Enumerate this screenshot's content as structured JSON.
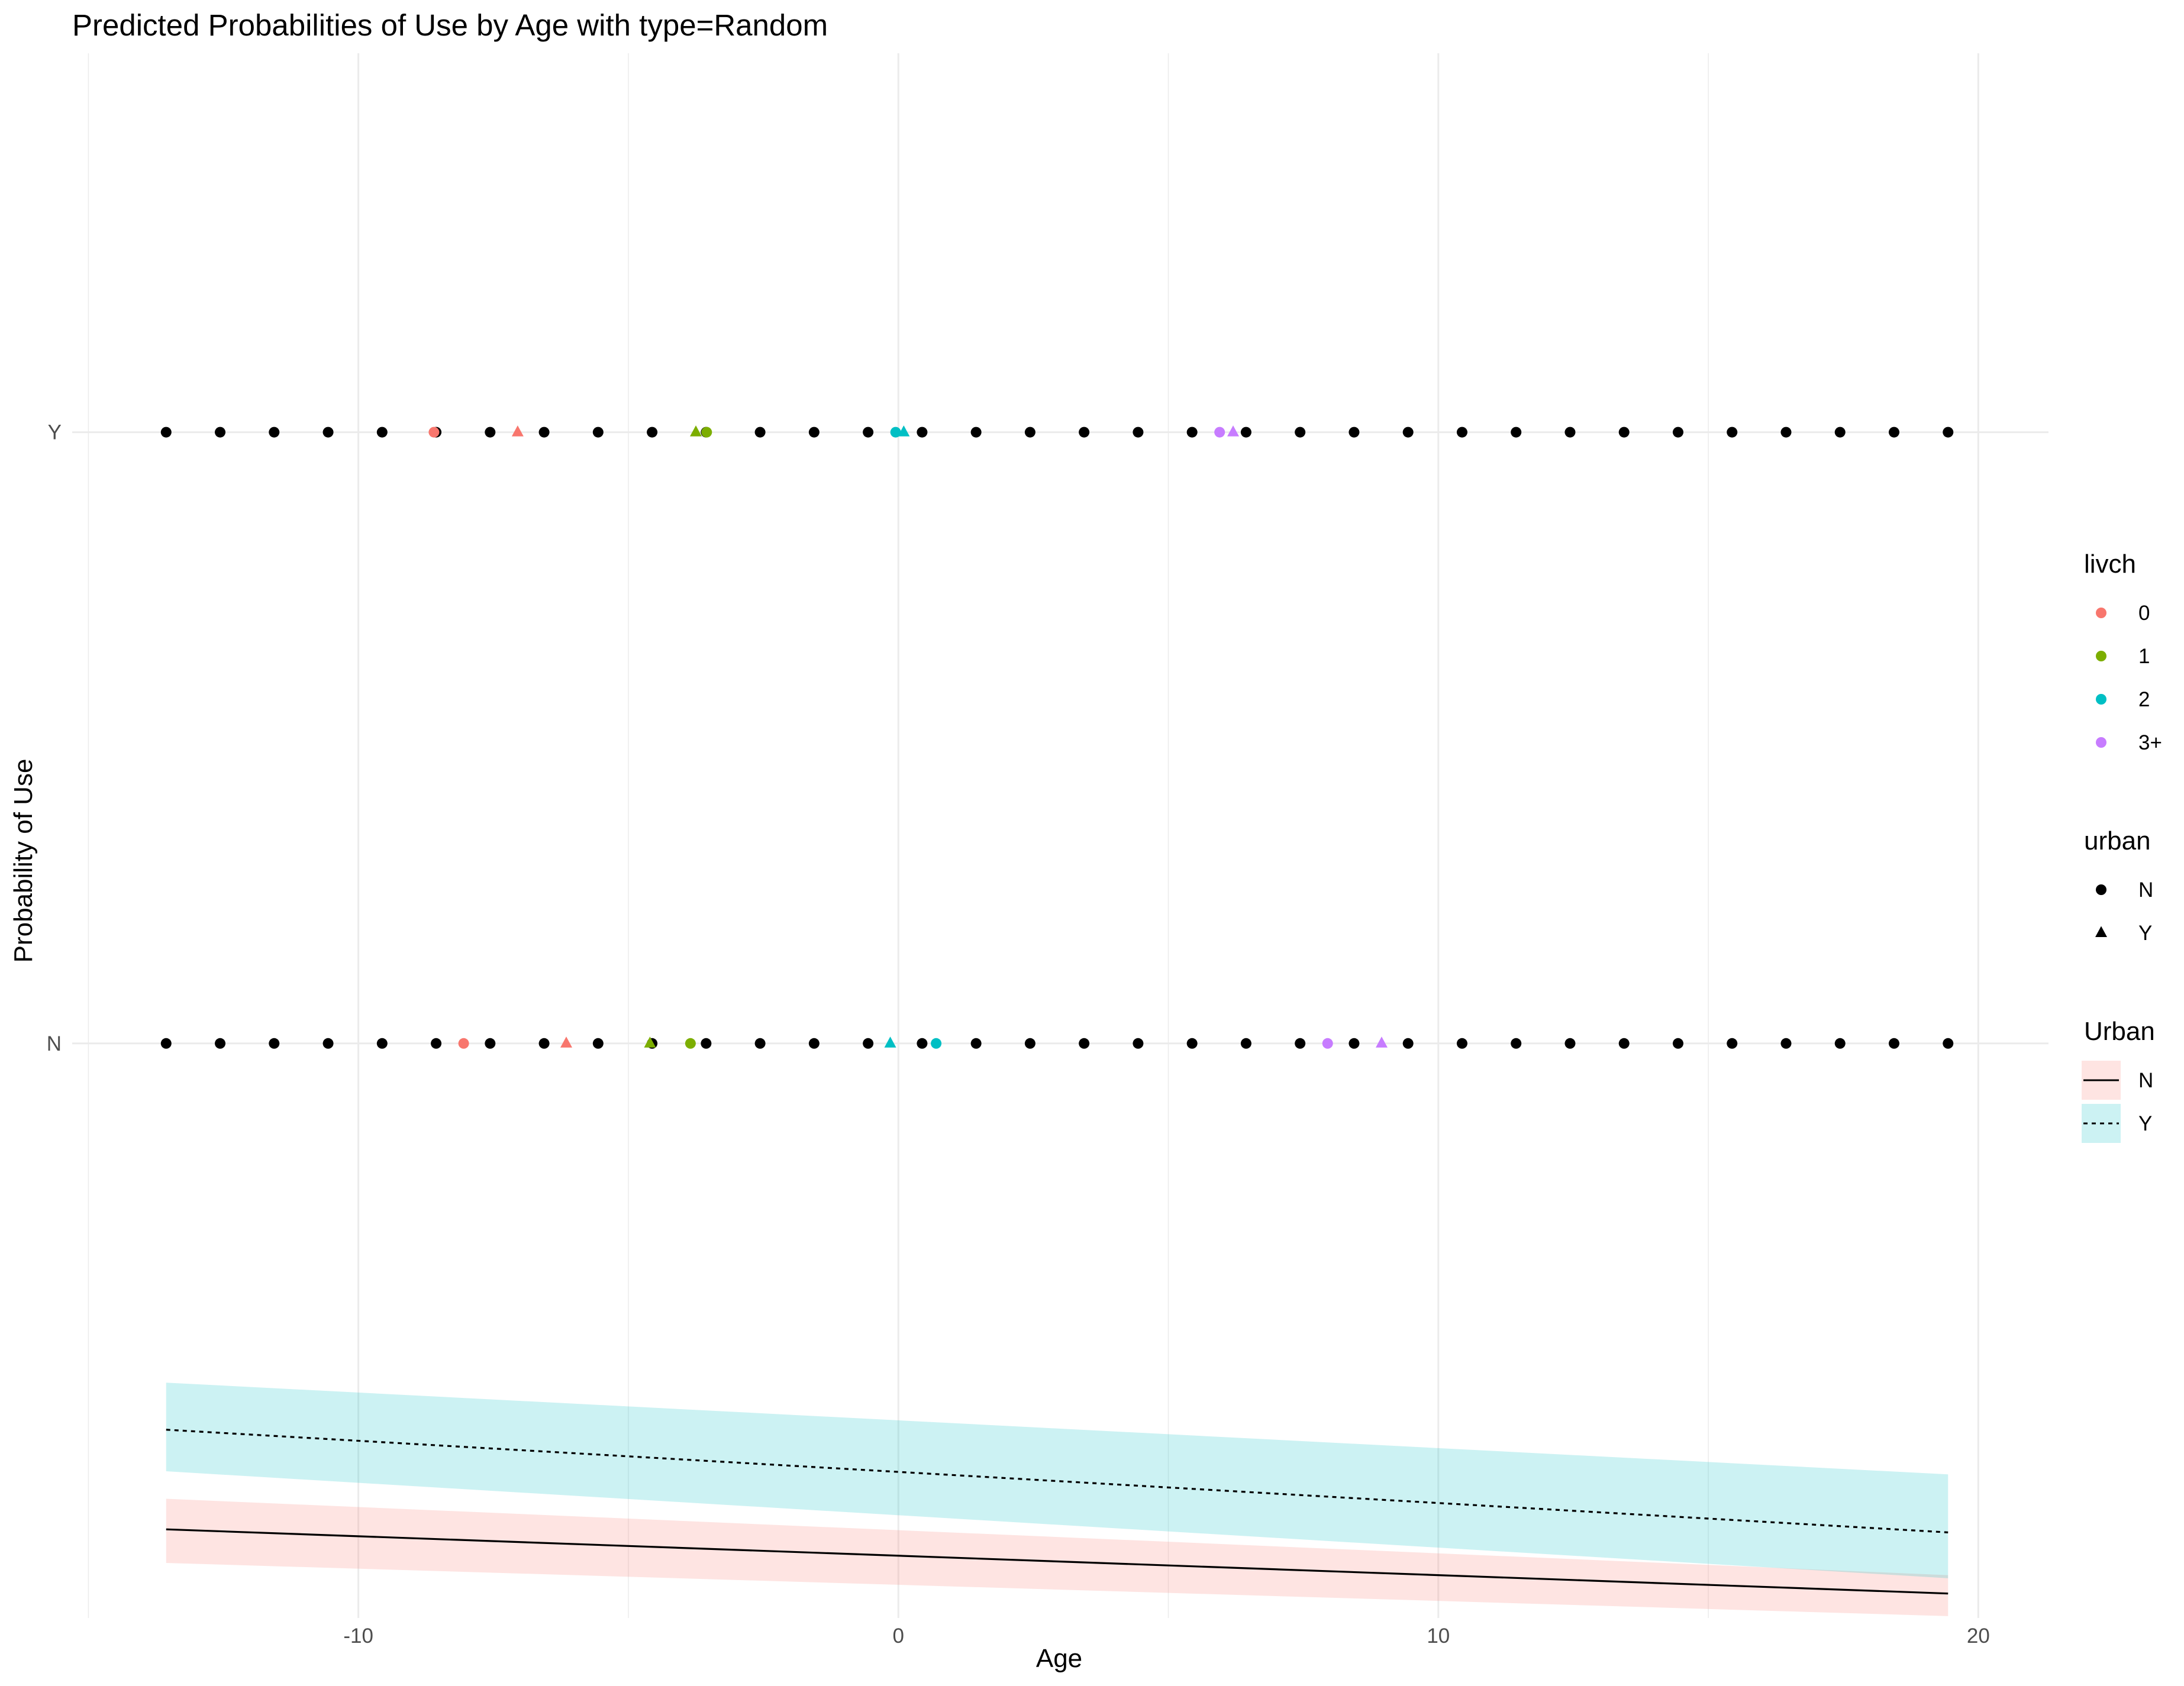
{
  "chart_data": {
    "type": "scatter",
    "title": "Predicted Probabilities of Use by Age with type=Random",
    "xlabel": "Age",
    "ylabel": "Probability of Use",
    "xlim": [
      -15.3,
      21.3
    ],
    "x_ticks": [
      -10,
      0,
      10,
      20
    ],
    "x_tick_labels": [
      "-10",
      "0",
      "10",
      "20"
    ],
    "y_ticks": [
      {
        "label": "Y",
        "value": 1
      },
      {
        "label": "N",
        "value": 0
      }
    ],
    "ylim": [
      -0.94,
      1.62
    ],
    "grid": true,
    "ribbon_data": [
      {
        "name": "N",
        "color": "#F8766D",
        "linetype": "solid",
        "x": [
          -13.56,
          19.44
        ],
        "y": [
          -0.795,
          -0.9
        ],
        "lower": [
          -0.85,
          -0.937
        ],
        "upper": [
          -0.745,
          -0.87
        ]
      },
      {
        "name": "Y",
        "color": "#00BFC4",
        "linetype": "dotted",
        "x": [
          -13.56,
          19.44
        ],
        "y": [
          -0.632,
          -0.8
        ],
        "lower": [
          -0.7,
          -0.875
        ],
        "upper": [
          -0.555,
          -0.705
        ]
      }
    ],
    "black_points_x": [
      -13.56,
      -12.56,
      -11.56,
      -10.56,
      -9.56,
      -8.56,
      -7.56,
      -6.56,
      -5.56,
      -4.56,
      -3.56,
      -2.56,
      -1.56,
      -0.56,
      0.44,
      1.44,
      2.44,
      3.44,
      4.44,
      5.44,
      6.44,
      7.44,
      8.44,
      9.44,
      10.44,
      11.44,
      12.44,
      13.44,
      14.44,
      15.44,
      16.44,
      17.44,
      18.44,
      19.44
    ],
    "colored_points": [
      {
        "x": -8.6,
        "y": 1,
        "livch": "0",
        "urban": "N"
      },
      {
        "x": -7.05,
        "y": 1,
        "livch": "0",
        "urban": "Y"
      },
      {
        "x": -3.75,
        "y": 1,
        "livch": "1",
        "urban": "Y"
      },
      {
        "x": -3.55,
        "y": 1,
        "livch": "1",
        "urban": "N"
      },
      {
        "x": -0.05,
        "y": 1,
        "livch": "2",
        "urban": "N"
      },
      {
        "x": 0.1,
        "y": 1,
        "livch": "2",
        "urban": "Y"
      },
      {
        "x": 5.95,
        "y": 1,
        "livch": "3+",
        "urban": "N"
      },
      {
        "x": 6.2,
        "y": 1,
        "livch": "3+",
        "urban": "Y"
      },
      {
        "x": -8.05,
        "y": 0,
        "livch": "0",
        "urban": "N"
      },
      {
        "x": -6.15,
        "y": 0,
        "livch": "0",
        "urban": "Y"
      },
      {
        "x": -4.6,
        "y": 0,
        "livch": "1",
        "urban": "Y"
      },
      {
        "x": -3.85,
        "y": 0,
        "livch": "1",
        "urban": "N"
      },
      {
        "x": -0.15,
        "y": 0,
        "livch": "2",
        "urban": "Y"
      },
      {
        "x": 0.7,
        "y": 0,
        "livch": "2",
        "urban": "N"
      },
      {
        "x": 7.95,
        "y": 0,
        "livch": "3+",
        "urban": "N"
      },
      {
        "x": 8.95,
        "y": 0,
        "livch": "3+",
        "urban": "Y"
      }
    ],
    "legends": [
      {
        "title": "livch",
        "kind": "color",
        "entries": [
          {
            "label": "0",
            "color": "#F8766D"
          },
          {
            "label": "1",
            "color": "#7CAE00"
          },
          {
            "label": "2",
            "color": "#00BFC4"
          },
          {
            "label": "3+",
            "color": "#C77CFF"
          }
        ]
      },
      {
        "title": "urban",
        "kind": "shape",
        "entries": [
          {
            "label": "N",
            "shape": "circle"
          },
          {
            "label": "Y",
            "shape": "triangle"
          }
        ]
      },
      {
        "title": "Urban",
        "kind": "ribbon",
        "entries": [
          {
            "label": "N",
            "fill": "#F8766D",
            "linetype": "solid"
          },
          {
            "label": "Y",
            "fill": "#00BFC4",
            "linetype": "dotted"
          }
        ]
      }
    ],
    "legend_position": "right",
    "colors": {
      "livch_0": "#F8766D",
      "livch_1": "#7CAE00",
      "livch_2": "#00BFC4",
      "livch_3plus": "#C77CFF",
      "grid": "#EBEBEB",
      "text": "#4D4D4D"
    }
  }
}
